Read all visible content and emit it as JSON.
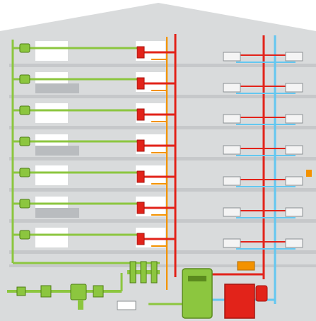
{
  "colors": {
    "wall": "#d9dbdc",
    "floor_slab": "#c6c8ca",
    "background": "#ffffff",
    "water_supply_pipe": "#8cc63f",
    "hot_water_pipe": "#e2231a",
    "orange_pipe": "#f39200",
    "cold_pipe": "#63c7f0",
    "boiler_body": "#8cc63f",
    "boiler_shade": "#5b8a1e",
    "burner_unit": "#e2231a",
    "burner_shade": "#a5140f",
    "radiator": "#f4f4f4"
  },
  "building": {
    "floors": 7
  },
  "icons": {
    "heating_radiators": "radiator-icon",
    "water_meters": "meter-valve-icon",
    "main_inlet": "pressure-reducer-icon",
    "boiler": "boiler-icon",
    "burner": "burner-icon",
    "expansion": "expansion-vessel-icon"
  }
}
